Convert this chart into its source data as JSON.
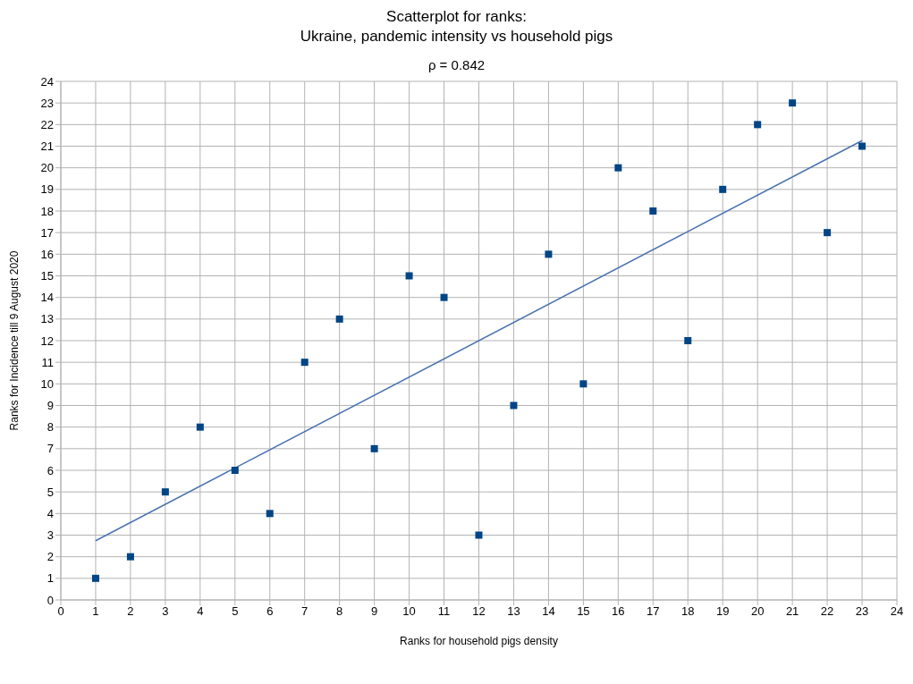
{
  "chart_data": {
    "type": "scatter",
    "title": "Scatterplot for ranks:\nUkraine, pandemic intensity vs household pigs",
    "subtitle": "ρ = 0.842",
    "xlabel": "Ranks for household pigs density",
    "ylabel": "Ranks for Incidence till 9 August 2020",
    "x": [
      1,
      2,
      3,
      4,
      5,
      6,
      7,
      8,
      9,
      10,
      11,
      12,
      13,
      14,
      15,
      16,
      17,
      18,
      19,
      20,
      21,
      22,
      23
    ],
    "series": [
      {
        "color": "#004586",
        "values": [
          1,
          2,
          5,
          8,
          6,
          4,
          11,
          13,
          7,
          15,
          14,
          3,
          9,
          16,
          10,
          20,
          18,
          12,
          19,
          22,
          23,
          17,
          21
        ],
        "marker": "square"
      },
      {
        "type": "line",
        "color": "#4a72b0",
        "x": [
          1,
          23
        ],
        "values": [
          2.74,
          21.26
        ],
        "marker": "none",
        "line_style": "solid"
      }
    ],
    "xlim": [
      0,
      24
    ],
    "xticks": [
      0,
      1,
      2,
      3,
      4,
      5,
      6,
      7,
      8,
      9,
      10,
      11,
      12,
      13,
      14,
      15,
      16,
      17,
      18,
      19,
      20,
      21,
      22,
      23,
      24
    ],
    "ylim": [
      0,
      24
    ],
    "yticks": [
      0,
      1,
      2,
      3,
      4,
      5,
      6,
      7,
      8,
      9,
      10,
      11,
      12,
      13,
      14,
      15,
      16,
      17,
      18,
      19,
      20,
      21,
      22,
      23,
      24
    ],
    "grid": true
  }
}
